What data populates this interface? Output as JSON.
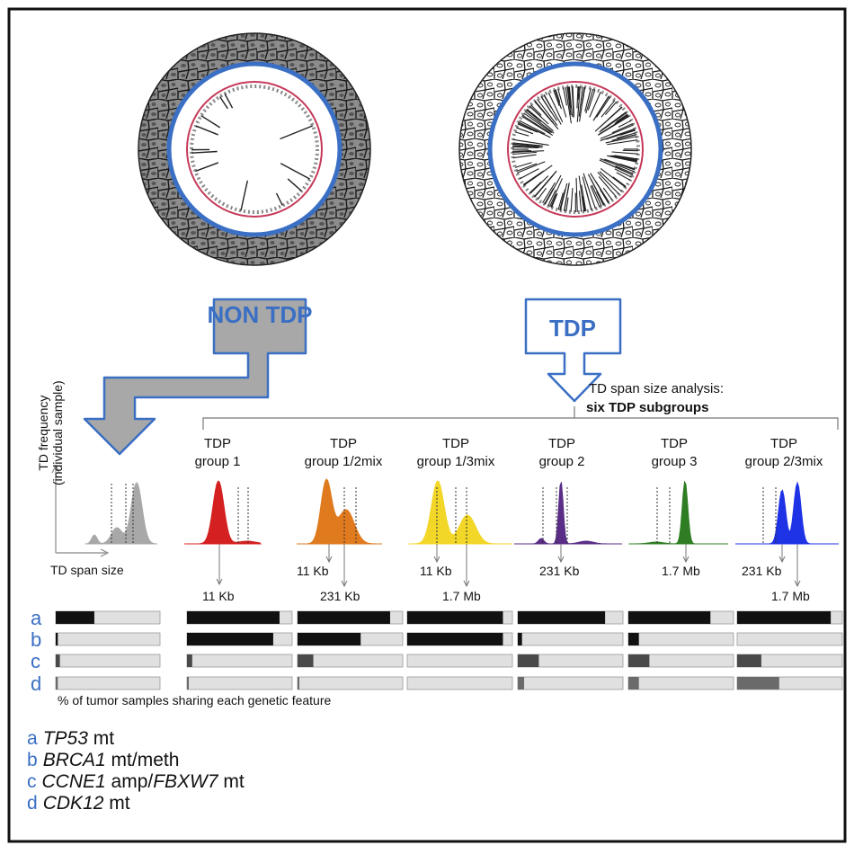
{
  "top": {
    "non_tdp_label": "NON TDP",
    "tdp_label": "TDP"
  },
  "analysis": {
    "line1": "TD span size analysis:",
    "line2": "six TDP subgroups"
  },
  "axes": {
    "ylabel_line1": "TD frequency",
    "ylabel_line2": "(individual sample)",
    "xlabel": "TD span size"
  },
  "groups": [
    {
      "l1": "TDP",
      "l2": "group 1",
      "color": "#d42020"
    },
    {
      "l1": "TDP",
      "l2": "group 1/2mix",
      "color": "#e07a1e"
    },
    {
      "l1": "TDP",
      "l2": "group 1/3mix",
      "color": "#f2d628"
    },
    {
      "l1": "TDP",
      "l2": "group 2",
      "color": "#5a2e86"
    },
    {
      "l1": "TDP",
      "l2": "group 3",
      "color": "#2e7d22"
    },
    {
      "l1": "TDP",
      "l2": "group 2/3mix",
      "color": "#1e32e6"
    }
  ],
  "size_labels": {
    "s11kb": "11 Kb",
    "s231kb": "231 Kb",
    "s17mb": "1.7 Mb"
  },
  "features": {
    "letters": [
      "a",
      "b",
      "c",
      "d"
    ],
    "caption": "% of tumor samples sharing each genetic feature",
    "fractions": {
      "nontdp": [
        0.37,
        0.02,
        0.04,
        0.02
      ],
      "group1": [
        0.88,
        0.82,
        0.05,
        0.01
      ],
      "group12mix": [
        0.88,
        0.6,
        0.15,
        0.01
      ],
      "group13mix": [
        0.91,
        0.91,
        0.0,
        0.0
      ],
      "group2": [
        0.83,
        0.04,
        0.2,
        0.06
      ],
      "group3": [
        0.78,
        0.1,
        0.2,
        0.1
      ],
      "group23mix": [
        0.89,
        0.0,
        0.23,
        0.4
      ]
    }
  },
  "legend": [
    {
      "letter": "a",
      "gene": "TP53",
      "rest": " mt",
      "gene2": "",
      "rest2": ""
    },
    {
      "letter": "b",
      "gene": "BRCA1",
      "rest": " mt/meth",
      "gene2": "",
      "rest2": ""
    },
    {
      "letter": "c",
      "gene": "CCNE1",
      "rest": " amp/",
      "gene2": "FBXW7",
      "rest2": " mt"
    },
    {
      "letter": "d",
      "gene": "CDK12",
      "rest": " mt",
      "gene2": "",
      "rest2": ""
    }
  ],
  "colors": {
    "blue": "#3a6fc4",
    "bar_black": "#111111",
    "bar_dark_gray": "#4a4a4a",
    "bar_mid_gray": "#6a6a6a",
    "bar_bg": "#e0e0e0",
    "nontdp_gray": "#a8a8a8"
  }
}
